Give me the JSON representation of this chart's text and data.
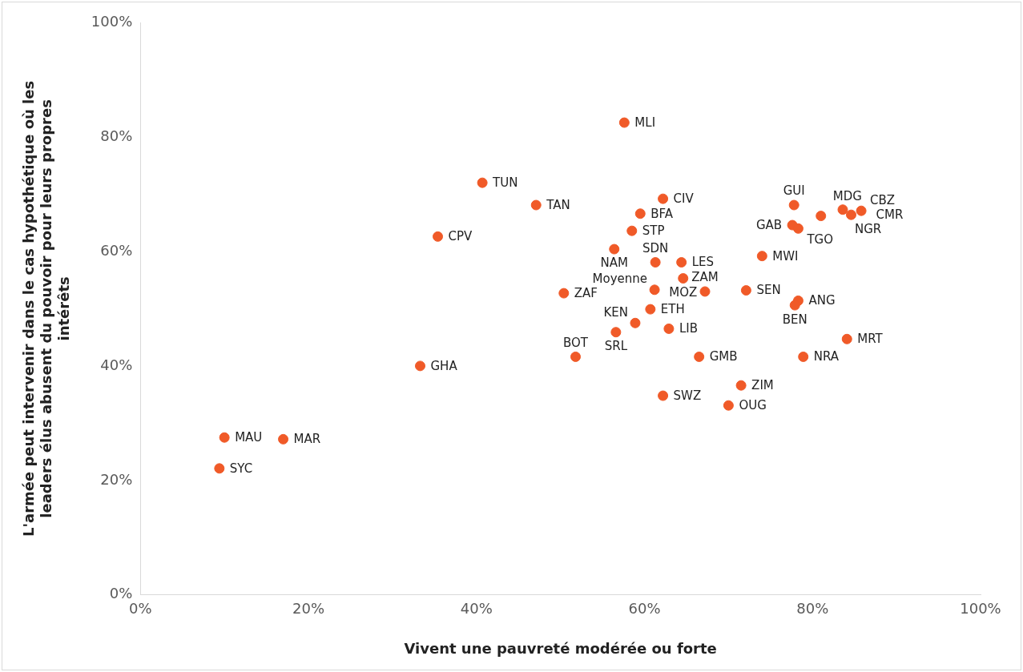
{
  "chart_data": {
    "type": "scatter",
    "xlabel": "Vivent une pauvreté modérée ou forte",
    "ylabel": "L'armée peut intervenir dans le cas hypothétique où les leaders élus abusent du pouvoir pour leurs propres intérêts",
    "xlim": [
      0,
      100
    ],
    "ylim": [
      0,
      100
    ],
    "xticks": [
      {
        "value": 0,
        "label": "0%"
      },
      {
        "value": 20,
        "label": "20%"
      },
      {
        "value": 40,
        "label": "40%"
      },
      {
        "value": 60,
        "label": "60%"
      },
      {
        "value": 80,
        "label": "80%"
      },
      {
        "value": 100,
        "label": "100%"
      }
    ],
    "yticks": [
      {
        "value": 0,
        "label": "0%"
      },
      {
        "value": 20,
        "label": "20%"
      },
      {
        "value": 40,
        "label": "40%"
      },
      {
        "value": 60,
        "label": "60%"
      },
      {
        "value": 80,
        "label": "80%"
      },
      {
        "value": 100,
        "label": "100%"
      }
    ],
    "grid": false,
    "legend": false,
    "marker": "circle",
    "series": [
      {
        "color": "#f05a28",
        "x": [
          40.7,
          47.1,
          35.4,
          33.3,
          10.0,
          17.0,
          9.4,
          57.6,
          62.2,
          59.5,
          58.5,
          56.4,
          61.3,
          64.4,
          64.6,
          50.4,
          61.2,
          67.2,
          72.1,
          78.3,
          77.9,
          60.7,
          58.9,
          56.6,
          62.9,
          51.8,
          66.5,
          78.9,
          84.1,
          71.5,
          62.2,
          70.0,
          74.0,
          77.8,
          77.6,
          78.3,
          81.0,
          83.6,
          84.6,
          85.8
        ],
        "values": [
          72.0,
          68.1,
          62.6,
          40.0,
          27.5,
          27.2,
          22.1,
          82.5,
          69.2,
          66.6,
          63.6,
          60.4,
          58.1,
          58.1,
          55.3,
          52.7,
          53.3,
          53.0,
          53.2,
          51.4,
          50.6,
          49.9,
          47.5,
          45.9,
          46.5,
          41.6,
          41.6,
          41.6,
          44.7,
          36.6,
          34.8,
          33.1,
          59.2,
          68.1,
          64.6,
          64.0,
          66.2,
          67.3,
          66.4,
          67.1
        ],
        "value_labels": [
          "TUN",
          "TAN",
          "CPV",
          "GHA",
          "MAU",
          "MAR",
          "SYC",
          "MLI",
          "CIV",
          "BFA",
          "STP",
          "NAM",
          "SDN",
          "LES",
          "MOZ",
          "ZAF",
          "Moyenne",
          "ZAM",
          "SEN",
          "ANG",
          "BEN",
          "ETH",
          "KEN",
          "SRL",
          "LIB",
          "BOT",
          "GMB",
          "NRA",
          "MRT",
          "ZIM",
          "SWZ",
          "OUG",
          "MWI",
          "GUI",
          "GAB",
          "TGO",
          "MDG",
          "NGR",
          "CMR",
          "CBZ"
        ]
      }
    ]
  }
}
